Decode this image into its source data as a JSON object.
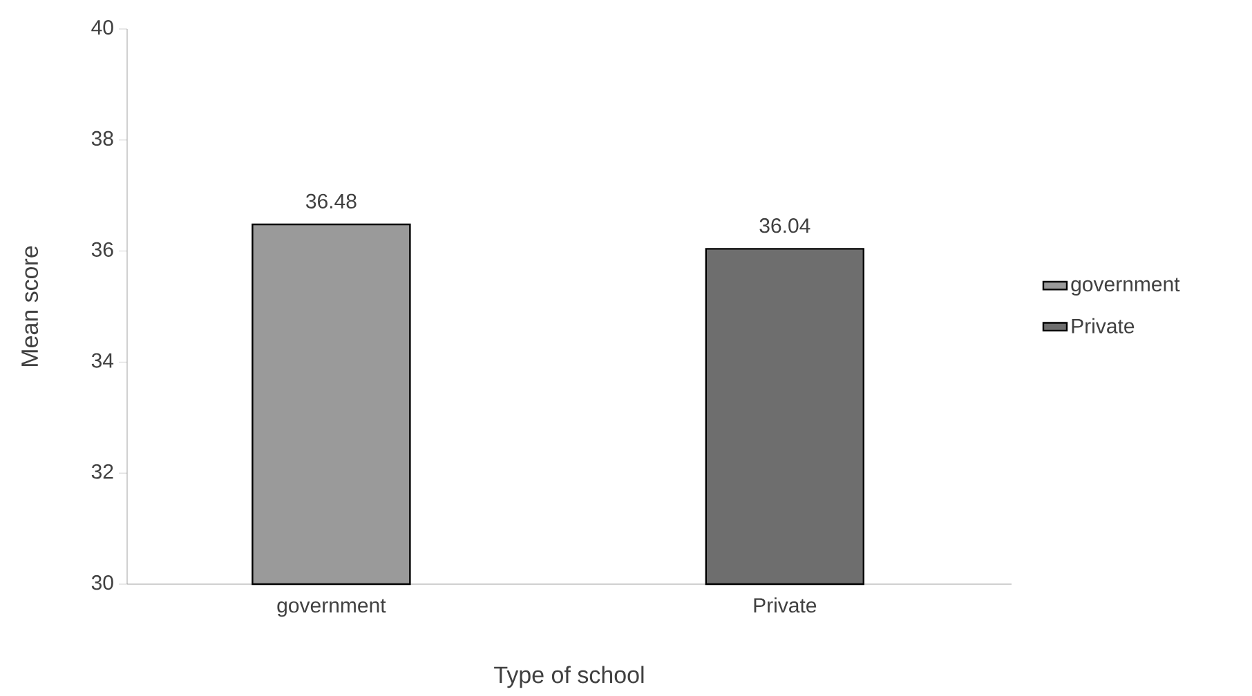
{
  "chart_data": {
    "type": "bar",
    "xlabel": "Type of school",
    "ylabel": "Mean score",
    "categories": [
      "government",
      "Private"
    ],
    "series": [
      {
        "name": "government",
        "color": "#9a9a9a",
        "values": [
          36.48,
          null
        ]
      },
      {
        "name": "Private",
        "color": "#6e6e6e",
        "values": [
          null,
          36.04
        ]
      }
    ],
    "ylim": [
      30,
      40
    ],
    "yticks": [
      30,
      32,
      34,
      36,
      38,
      40
    ],
    "grid": false,
    "legend": "right",
    "data_labels": true
  }
}
